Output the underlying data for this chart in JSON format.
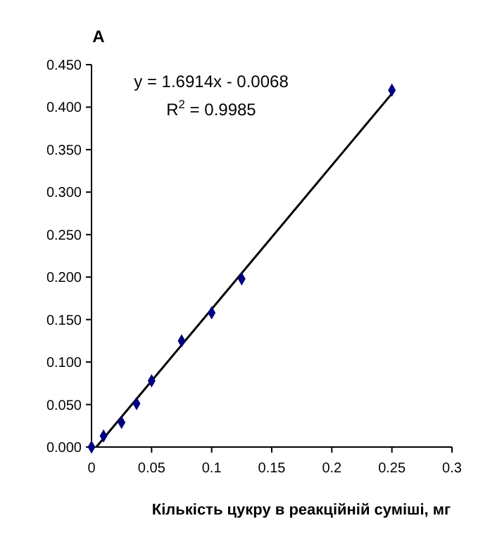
{
  "chart_data": {
    "type": "scatter",
    "ylabel": "A",
    "xlabel": "Кількість цукру в реакційній суміші, мг",
    "xlim": [
      0,
      0.3
    ],
    "xticks": [
      0,
      0.05,
      0.1,
      0.15,
      0.2,
      0.25,
      0.3
    ],
    "ylim": [
      0,
      0.45
    ],
    "yticks": [
      {
        "value": 0,
        "label": "0.000"
      },
      {
        "value": 0.05,
        "label": "0.050"
      },
      {
        "value": 0.1,
        "label": "0.100"
      },
      {
        "value": 0.15,
        "label": "0.150"
      },
      {
        "value": 0.2,
        "label": "0.200"
      },
      {
        "value": 0.25,
        "label": "0.250"
      },
      {
        "value": 0.3,
        "label": "0.300"
      },
      {
        "value": 0.35,
        "label": "0.350"
      },
      {
        "value": 0.4,
        "label": "0.400"
      },
      {
        "value": 0.45,
        "label": "0.450"
      }
    ],
    "grid": false,
    "annotations": [
      "y = 1.6914x - 0.0068",
      "R$^{2}$ = 0.9985"
    ],
    "series": [
      {
        "type": "line",
        "color": "#000000",
        "x": [
          0.004,
          0.25
        ],
        "values": [
          0,
          0.416
        ],
        "marker": "none",
        "line_style": "solid"
      },
      {
        "type": "scatter",
        "color": "#000080",
        "x": [
          0,
          0.01,
          0.025,
          0.0375,
          0.05,
          0.075,
          0.1,
          0.125,
          0.25
        ],
        "values": [
          0,
          0.013,
          0.029,
          0.051,
          0.078,
          0.125,
          0.158,
          0.198,
          0.42
        ],
        "marker": "diamond"
      }
    ]
  }
}
